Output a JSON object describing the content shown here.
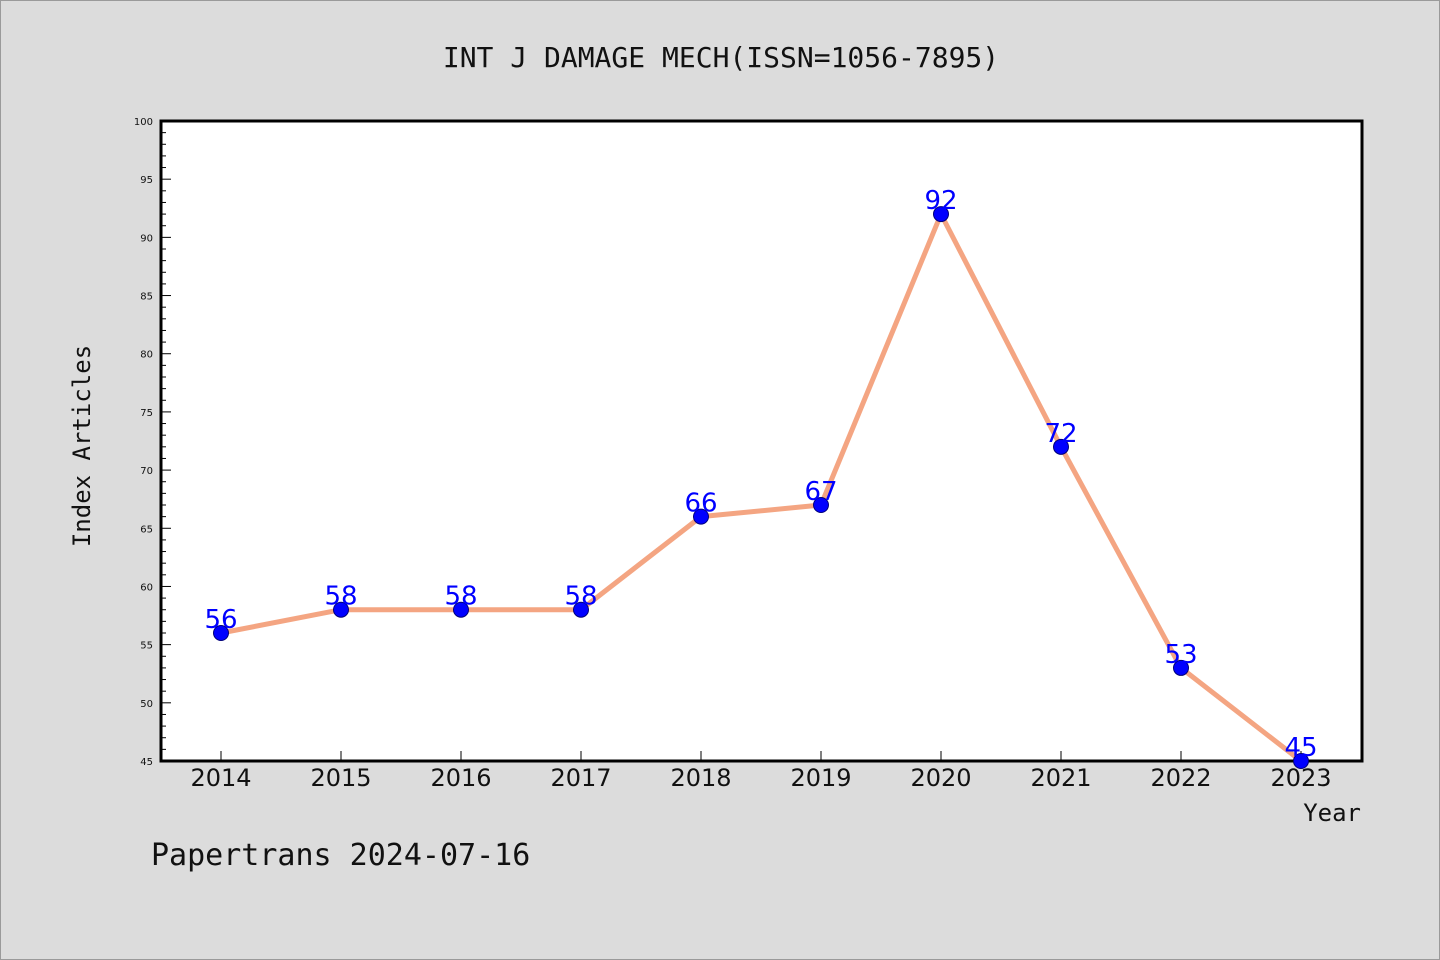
{
  "footer": "Papertrans 2024-07-16",
  "chart_data": {
    "type": "line",
    "title": "INT J DAMAGE MECH(ISSN=1056-7895)",
    "xlabel": "Year",
    "ylabel": "Index Articles",
    "categories": [
      "2014",
      "2015",
      "2016",
      "2017",
      "2018",
      "2019",
      "2020",
      "2021",
      "2022",
      "2023"
    ],
    "series": [
      {
        "values": [
          56,
          58,
          58,
          58,
          66,
          67,
          92,
          72,
          53,
          45
        ]
      }
    ],
    "ylim": [
      45,
      100
    ],
    "yticks": [
      45,
      50,
      55,
      60,
      65,
      70,
      75,
      80,
      85,
      90,
      95,
      100
    ],
    "grid": false,
    "line_color": "#f4a582",
    "marker_color": "#0000ff",
    "label_color": "#0000ff",
    "background": "#dcdcdc",
    "plot_background": "#ffffff"
  }
}
